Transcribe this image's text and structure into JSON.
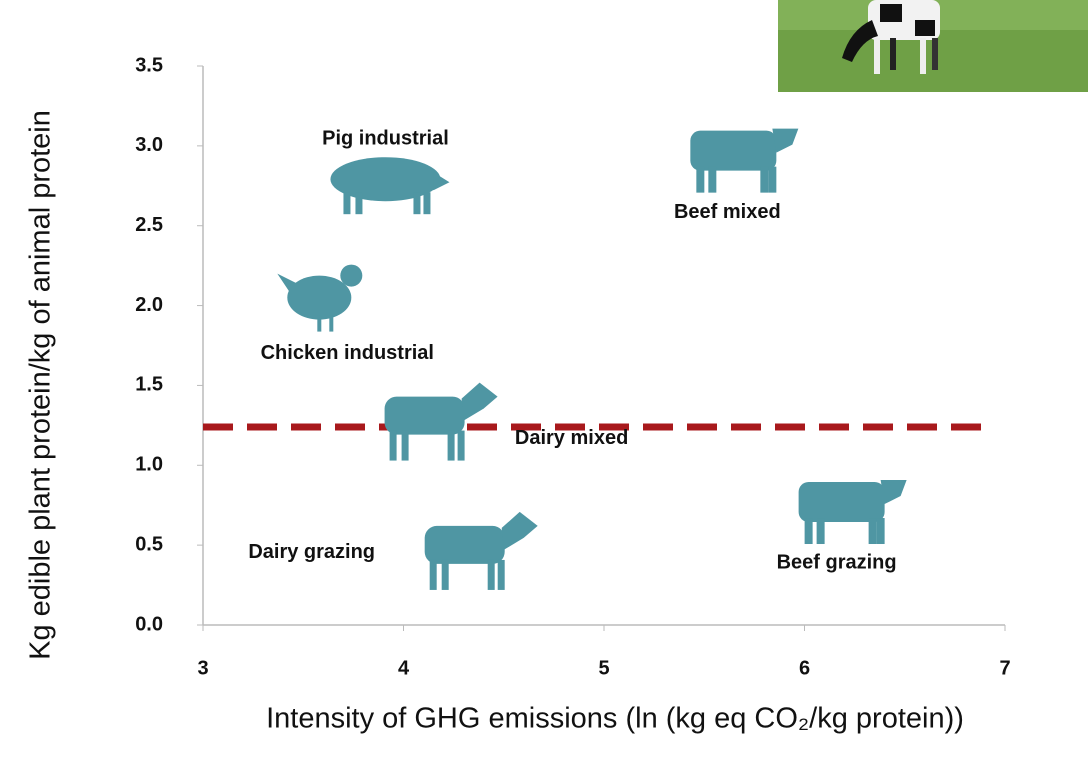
{
  "chart_data": {
    "type": "scatter",
    "x_label": "Intensity of GHG emissions (ln (kg eq CO₂/kg protein))",
    "y_label": "Kg edible plant protein/kg of animal protein",
    "xlim": [
      3,
      7
    ],
    "xticks": [
      3,
      4,
      5,
      6,
      7
    ],
    "ylim": [
      0,
      3.5
    ],
    "yticks": [
      {
        "value": 0,
        "label": "0.0"
      },
      0.5,
      {
        "value": 1,
        "label": "1.0"
      },
      1.5,
      {
        "value": 2,
        "label": "2.0"
      },
      2.5,
      {
        "value": 3,
        "label": "3.0"
      },
      3.5
    ],
    "color": "#4f96a3",
    "grid": false,
    "points": [
      {
        "label": "Pig industrial",
        "icon": "pig",
        "x": 3.91,
        "y": 2.76
      },
      {
        "label": "Beef mixed",
        "icon": "beef",
        "x": 5.69,
        "y": 2.92
      },
      {
        "label": "Chicken industrial",
        "icon": "chicken",
        "x": 3.62,
        "y": 2.05
      },
      {
        "label": "Dairy mixed",
        "icon": "dairy",
        "x": 4.18,
        "y": 1.28
      },
      {
        "label": "Dairy grazing",
        "icon": "dairy",
        "x": 4.38,
        "y": 0.47
      },
      {
        "label": "Beef  grazing",
        "icon": "beef",
        "x": 6.23,
        "y": 0.72
      }
    ],
    "reference_line": {
      "y": 1.24,
      "color": "#a8191c",
      "style": "dashed"
    }
  }
}
